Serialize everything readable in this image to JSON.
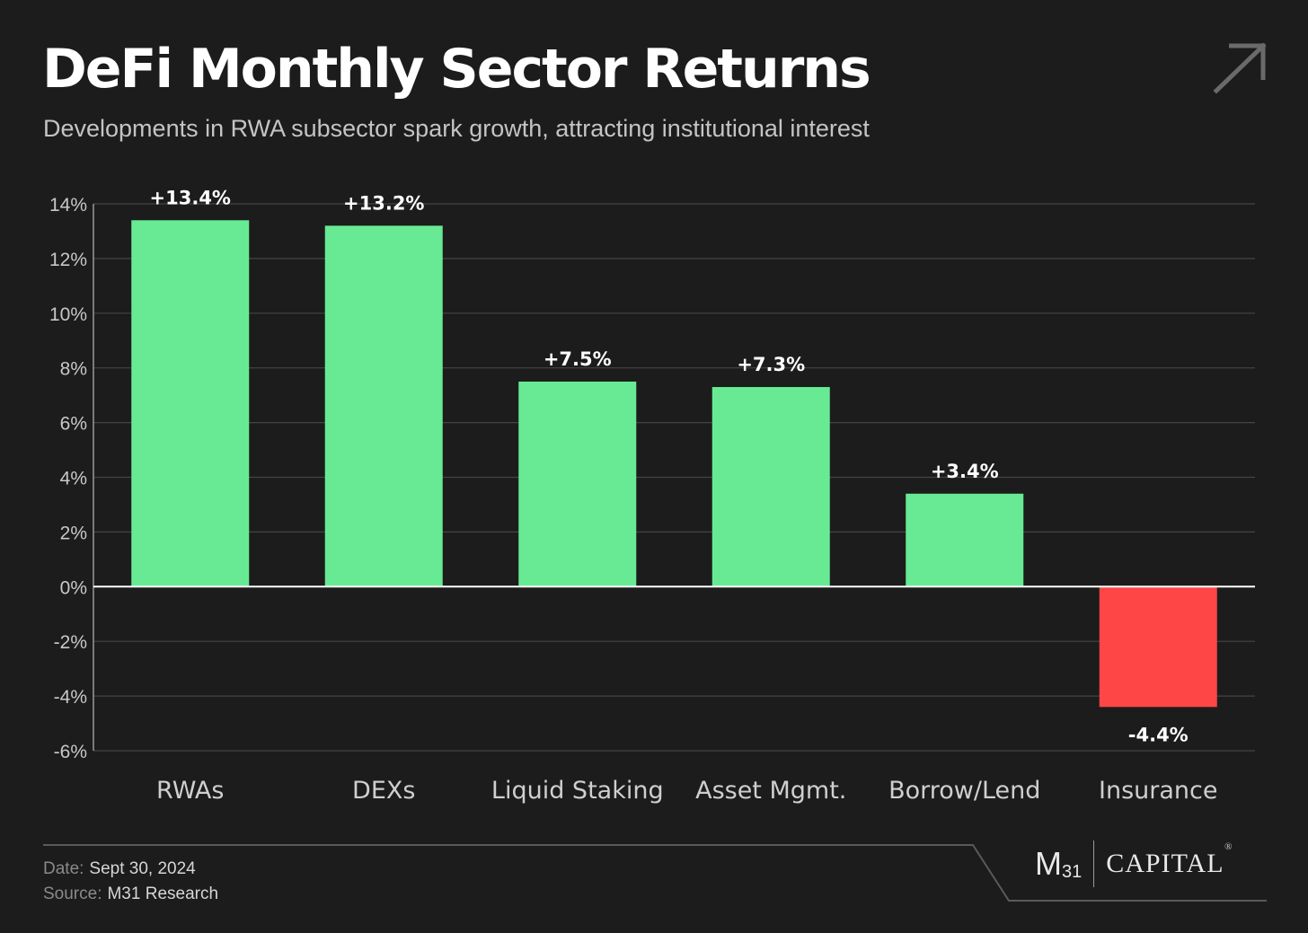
{
  "header": {
    "title": "DeFi Monthly Sector Returns",
    "subtitle": "Developments in RWA subsector spark growth, attracting institutional interest",
    "corner_icon": "arrow-up-right-icon"
  },
  "chart_data": {
    "type": "bar",
    "categories": [
      "RWAs",
      "DEXs",
      "Liquid Staking",
      "Asset Mgmt.",
      "Borrow/Lend",
      "Insurance"
    ],
    "values": [
      13.4,
      13.2,
      7.5,
      7.3,
      3.4,
      -4.4
    ],
    "data_labels": [
      "+13.4%",
      "+13.2%",
      "+7.5%",
      "+7.3%",
      "+3.4%",
      "-4.4%"
    ],
    "ylim": [
      -6,
      14
    ],
    "yticks": [
      14,
      12,
      10,
      8,
      6,
      4,
      2,
      0,
      -2,
      -4,
      -6
    ],
    "ytick_labels": [
      "14%",
      "12%",
      "10%",
      "8%",
      "6%",
      "4%",
      "2%",
      "0%",
      "-2%",
      "-4%",
      "-6%"
    ],
    "grid": true,
    "colors": {
      "positive": "#67ea93",
      "negative": "#ff4646",
      "grid": "#444444",
      "zero_line": "#ffffff"
    }
  },
  "footer": {
    "date_label": "Date:",
    "date_value": "Sept 30, 2024",
    "source_label": "Source:",
    "source_value": "M31 Research"
  },
  "logo": {
    "mark": "M",
    "mark_sub": "31",
    "word": "CAPITAL",
    "reg": "®"
  }
}
